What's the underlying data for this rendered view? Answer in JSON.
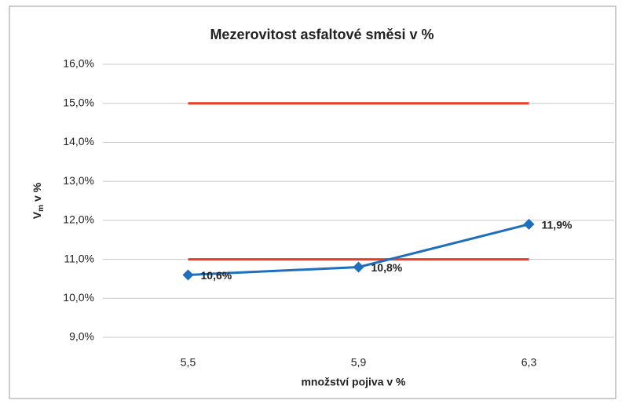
{
  "chart_data": {
    "type": "line",
    "title": "Mezerovitost asfaltové směsi v %",
    "x_label": "množství pojiva v %",
    "y_label": {
      "main": "V",
      "sub": "m",
      "rest": "v %"
    },
    "categories": [
      "5,5",
      "5,9",
      "6,3"
    ],
    "series": [
      {
        "color": "#1f6fbf",
        "values": [
          10.6,
          10.8,
          11.9
        ],
        "value_labels": [
          "10,6%",
          "10,8%",
          "11,9%"
        ],
        "marker": "diamond"
      },
      {
        "color": "#f03a24",
        "values": [
          15,
          15,
          15
        ]
      },
      {
        "color": "#f03a24",
        "values": [
          11,
          11,
          11
        ]
      }
    ],
    "ylim": [
      9,
      16
    ],
    "yticks": [
      {
        "value": 9,
        "label": "9,0%"
      },
      {
        "value": 10,
        "label": "10,0%"
      },
      {
        "value": 11,
        "label": "11,0%"
      },
      {
        "value": 12,
        "label": "12,0%"
      },
      {
        "value": 13,
        "label": "13,0%"
      },
      {
        "value": 14,
        "label": "14,0%"
      },
      {
        "value": 15,
        "label": "15,0%"
      },
      {
        "value": 16,
        "label": "16,0%"
      }
    ],
    "grid": true
  }
}
